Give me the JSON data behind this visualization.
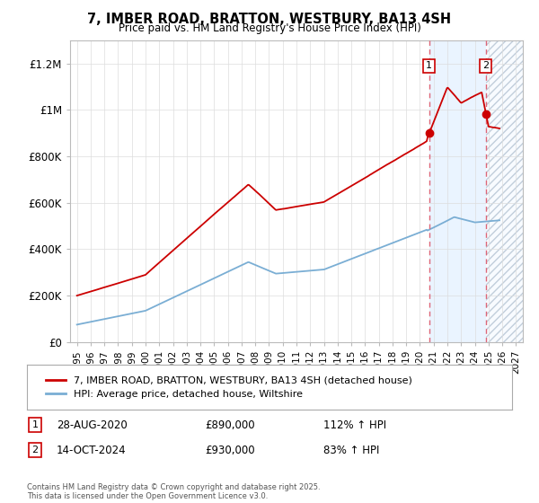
{
  "title": "7, IMBER ROAD, BRATTON, WESTBURY, BA13 4SH",
  "subtitle": "Price paid vs. HM Land Registry's House Price Index (HPI)",
  "hpi_label": "HPI: Average price, detached house, Wiltshire",
  "property_label": "7, IMBER ROAD, BRATTON, WESTBURY, BA13 4SH (detached house)",
  "footnote": "Contains HM Land Registry data © Crown copyright and database right 2025.\nThis data is licensed under the Open Government Licence v3.0.",
  "sale1_date": "28-AUG-2020",
  "sale1_price": 890000,
  "sale1_hpi_text": "112% ↑ HPI",
  "sale2_date": "14-OCT-2024",
  "sale2_price": 930000,
  "sale2_hpi_text": "83% ↑ HPI",
  "sale1_year": 2020.66,
  "sale2_year": 2024.79,
  "red_color": "#cc0000",
  "blue_color": "#7aaed4",
  "ylim_min": 0,
  "ylim_max": 1300000,
  "xlim_min": 1994.5,
  "xlim_max": 2027.5,
  "yticks": [
    0,
    200000,
    400000,
    600000,
    800000,
    1000000,
    1200000
  ],
  "ytick_labels": [
    "£0",
    "£200K",
    "£400K",
    "£600K",
    "£800K",
    "£1M",
    "£1.2M"
  ],
  "xtick_years": [
    1995,
    1996,
    1997,
    1998,
    1999,
    2000,
    2001,
    2002,
    2003,
    2004,
    2005,
    2006,
    2007,
    2008,
    2009,
    2010,
    2011,
    2012,
    2013,
    2014,
    2015,
    2016,
    2017,
    2018,
    2019,
    2020,
    2021,
    2022,
    2023,
    2024,
    2025,
    2026,
    2027
  ]
}
